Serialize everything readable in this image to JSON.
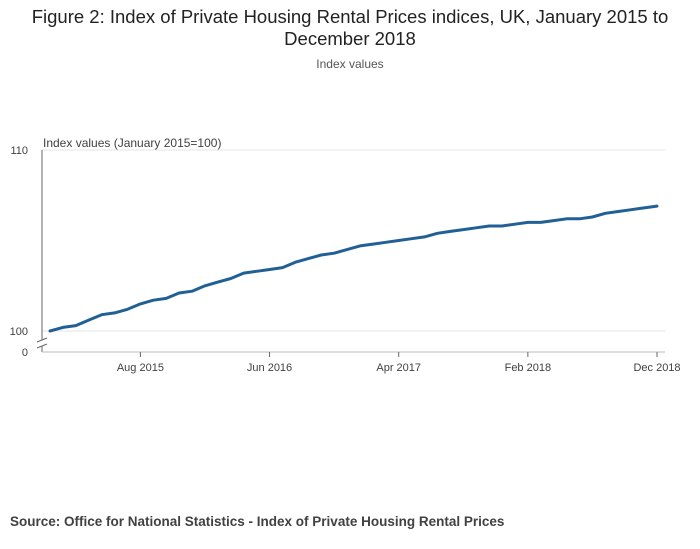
{
  "title": "Figure 2: Index of Private Housing Rental Prices indices, UK, January 2015 to December 2018",
  "subtitle": "Index values",
  "source": "Source: Office for National Statistics - Index of Private Housing Rental Prices",
  "colors": {
    "line": "#206095",
    "grid": "#e6e6e6",
    "axis": "#666666"
  },
  "chart_data": {
    "type": "line",
    "title": "Figure 2: Index of Private Housing Rental Prices indices, UK, January 2015 to December 2018",
    "subtitle": "Index values",
    "ylabel": "Index values (January 2015=100)",
    "xlabel": "",
    "ylim": [
      100,
      110
    ],
    "y_axis_break": true,
    "y_ticks": [
      "110",
      "100",
      "0"
    ],
    "x_ticks": [
      {
        "label": "Aug 2015",
        "index": 7
      },
      {
        "label": "Jun 2016",
        "index": 17
      },
      {
        "label": "Apr 2017",
        "index": 27
      },
      {
        "label": "Feb 2018",
        "index": 37
      },
      {
        "label": "Dec 2018",
        "index": 47
      }
    ],
    "grid": true,
    "series": [
      {
        "name": "",
        "x": [
          "Jan 2015",
          "Feb 2015",
          "Mar 2015",
          "Apr 2015",
          "May 2015",
          "Jun 2015",
          "Jul 2015",
          "Aug 2015",
          "Sep 2015",
          "Oct 2015",
          "Nov 2015",
          "Dec 2015",
          "Jan 2016",
          "Feb 2016",
          "Mar 2016",
          "Apr 2016",
          "May 2016",
          "Jun 2016",
          "Jul 2016",
          "Aug 2016",
          "Sep 2016",
          "Oct 2016",
          "Nov 2016",
          "Dec 2016",
          "Jan 2017",
          "Feb 2017",
          "Mar 2017",
          "Apr 2017",
          "May 2017",
          "Jun 2017",
          "Jul 2017",
          "Aug 2017",
          "Sep 2017",
          "Oct 2017",
          "Nov 2017",
          "Dec 2017",
          "Jan 2018",
          "Feb 2018",
          "Mar 2018",
          "Apr 2018",
          "May 2018",
          "Jun 2018",
          "Jul 2018",
          "Aug 2018",
          "Sep 2018",
          "Oct 2018",
          "Nov 2018",
          "Dec 2018"
        ],
        "values": [
          100.0,
          100.2,
          100.3,
          100.6,
          100.9,
          101.0,
          101.2,
          101.5,
          101.7,
          101.8,
          102.1,
          102.2,
          102.5,
          102.7,
          102.9,
          103.2,
          103.3,
          103.4,
          103.5,
          103.8,
          104.0,
          104.2,
          104.3,
          104.5,
          104.7,
          104.8,
          104.9,
          105.0,
          105.1,
          105.2,
          105.4,
          105.5,
          105.6,
          105.7,
          105.8,
          105.8,
          105.9,
          106.0,
          106.0,
          106.1,
          106.2,
          106.2,
          106.3,
          106.5,
          106.6,
          106.7,
          106.8,
          106.9
        ]
      }
    ]
  }
}
